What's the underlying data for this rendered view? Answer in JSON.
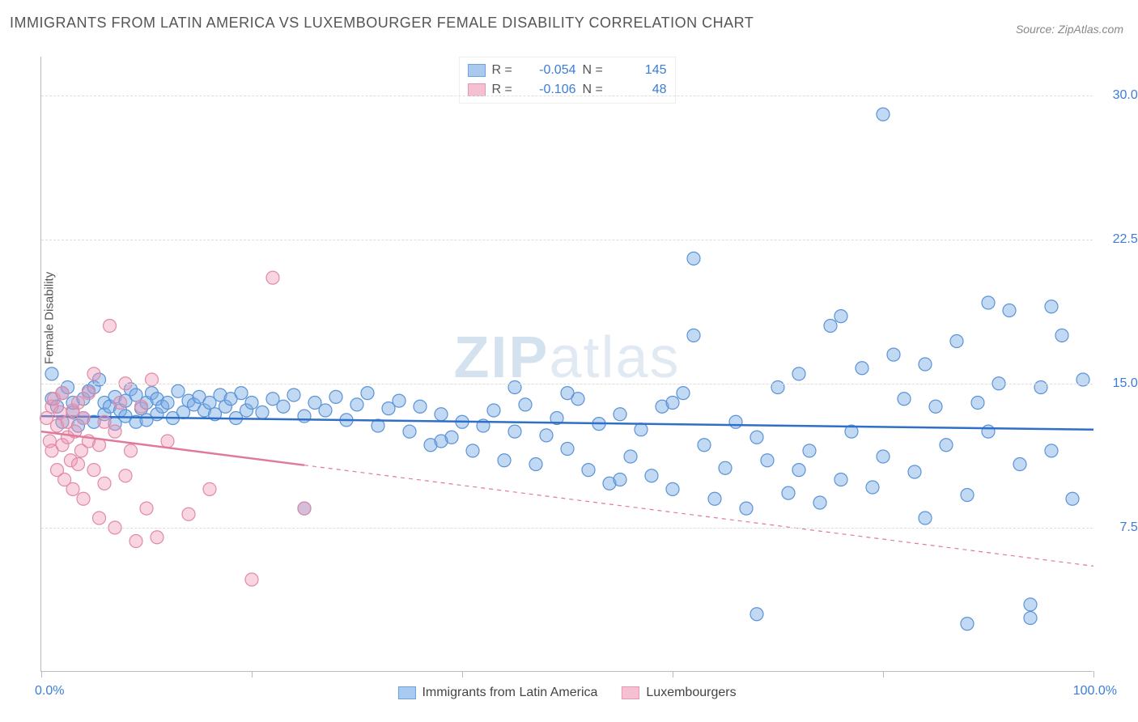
{
  "title": "IMMIGRANTS FROM LATIN AMERICA VS LUXEMBOURGER FEMALE DISABILITY CORRELATION CHART",
  "source": "Source: ZipAtlas.com",
  "watermark": {
    "bold": "ZIP",
    "light": "atlas"
  },
  "chart": {
    "type": "scatter",
    "ylabel": "Female Disability",
    "xlim": [
      0,
      100
    ],
    "ylim": [
      0,
      32
    ],
    "ytick_values": [
      7.5,
      15.0,
      22.5,
      30.0
    ],
    "ytick_labels": [
      "7.5%",
      "15.0%",
      "22.5%",
      "30.0%"
    ],
    "xtick_values": [
      0,
      20,
      40,
      60,
      80,
      100
    ],
    "xtick_left_label": "0.0%",
    "xtick_right_label": "100.0%",
    "background_color": "#ffffff",
    "grid_color": "#dddddd",
    "axis_color": "#bbbbbb",
    "tick_label_color": "#3b7dd8",
    "marker_radius": 8,
    "marker_stroke_width": 1.2,
    "trend_line_width": 2.5,
    "series": [
      {
        "name": "Immigrants from Latin America",
        "fill": "rgba(120,170,230,0.45)",
        "stroke": "#5b93d6",
        "swatch_fill": "#a9c9ef",
        "swatch_stroke": "#6fa3dc",
        "R": "-0.054",
        "N": "145",
        "trend": {
          "x1": 0,
          "y1": 13.3,
          "x2": 100,
          "y2": 12.6,
          "solid_to_x": 100,
          "color": "#2f6fc7"
        },
        "points": [
          [
            1,
            15.5
          ],
          [
            1,
            14.2
          ],
          [
            1.5,
            13.8
          ],
          [
            2,
            14.5
          ],
          [
            2,
            13.0
          ],
          [
            2.5,
            14.8
          ],
          [
            3,
            13.5
          ],
          [
            3,
            14.0
          ],
          [
            3.5,
            12.8
          ],
          [
            4,
            14.2
          ],
          [
            4,
            13.2
          ],
          [
            4.5,
            14.6
          ],
          [
            5,
            13.0
          ],
          [
            5,
            14.8
          ],
          [
            5.5,
            15.2
          ],
          [
            6,
            13.4
          ],
          [
            6,
            14.0
          ],
          [
            6.5,
            13.8
          ],
          [
            7,
            14.3
          ],
          [
            7,
            12.9
          ],
          [
            7.5,
            13.6
          ],
          [
            8,
            14.1
          ],
          [
            8,
            13.3
          ],
          [
            8.5,
            14.7
          ],
          [
            9,
            13.0
          ],
          [
            9,
            14.4
          ],
          [
            9.5,
            13.7
          ],
          [
            10,
            14.0
          ],
          [
            10,
            13.1
          ],
          [
            10.5,
            14.5
          ],
          [
            11,
            13.4
          ],
          [
            11,
            14.2
          ],
          [
            11.5,
            13.8
          ],
          [
            12,
            14.0
          ],
          [
            12.5,
            13.2
          ],
          [
            13,
            14.6
          ],
          [
            13.5,
            13.5
          ],
          [
            14,
            14.1
          ],
          [
            14.5,
            13.9
          ],
          [
            15,
            14.3
          ],
          [
            15.5,
            13.6
          ],
          [
            16,
            14.0
          ],
          [
            16.5,
            13.4
          ],
          [
            17,
            14.4
          ],
          [
            17.5,
            13.8
          ],
          [
            18,
            14.2
          ],
          [
            18.5,
            13.2
          ],
          [
            19,
            14.5
          ],
          [
            19.5,
            13.6
          ],
          [
            20,
            14.0
          ],
          [
            21,
            13.5
          ],
          [
            22,
            14.2
          ],
          [
            23,
            13.8
          ],
          [
            24,
            14.4
          ],
          [
            25,
            13.3
          ],
          [
            26,
            14.0
          ],
          [
            27,
            13.6
          ],
          [
            28,
            14.3
          ],
          [
            29,
            13.1
          ],
          [
            30,
            13.9
          ],
          [
            31,
            14.5
          ],
          [
            32,
            12.8
          ],
          [
            33,
            13.7
          ],
          [
            34,
            14.1
          ],
          [
            35,
            12.5
          ],
          [
            36,
            13.8
          ],
          [
            37,
            11.8
          ],
          [
            38,
            13.4
          ],
          [
            39,
            12.2
          ],
          [
            40,
            13.0
          ],
          [
            41,
            11.5
          ],
          [
            42,
            12.8
          ],
          [
            43,
            13.6
          ],
          [
            44,
            11.0
          ],
          [
            45,
            12.5
          ],
          [
            46,
            13.9
          ],
          [
            47,
            10.8
          ],
          [
            48,
            12.3
          ],
          [
            49,
            13.2
          ],
          [
            50,
            11.6
          ],
          [
            51,
            14.2
          ],
          [
            52,
            10.5
          ],
          [
            53,
            12.9
          ],
          [
            54,
            9.8
          ],
          [
            55,
            13.4
          ],
          [
            56,
            11.2
          ],
          [
            57,
            12.6
          ],
          [
            58,
            10.2
          ],
          [
            59,
            13.8
          ],
          [
            60,
            9.5
          ],
          [
            61,
            14.5
          ],
          [
            62,
            17.5
          ],
          [
            62,
            21.5
          ],
          [
            63,
            11.8
          ],
          [
            64,
            9.0
          ],
          [
            65,
            10.6
          ],
          [
            66,
            13.0
          ],
          [
            67,
            8.5
          ],
          [
            68,
            12.2
          ],
          [
            69,
            11.0
          ],
          [
            70,
            14.8
          ],
          [
            71,
            9.3
          ],
          [
            72,
            15.5
          ],
          [
            73,
            11.5
          ],
          [
            74,
            8.8
          ],
          [
            75,
            18.0
          ],
          [
            76,
            10.0
          ],
          [
            77,
            12.5
          ],
          [
            78,
            15.8
          ],
          [
            79,
            9.6
          ],
          [
            80,
            11.2
          ],
          [
            81,
            16.5
          ],
          [
            82,
            14.2
          ],
          [
            83,
            10.4
          ],
          [
            84,
            8.0
          ],
          [
            85,
            13.8
          ],
          [
            86,
            11.8
          ],
          [
            87,
            17.2
          ],
          [
            88,
            9.2
          ],
          [
            89,
            14.0
          ],
          [
            90,
            12.5
          ],
          [
            91,
            15.0
          ],
          [
            92,
            18.8
          ],
          [
            93,
            10.8
          ],
          [
            94,
            3.5
          ],
          [
            95,
            14.8
          ],
          [
            96,
            11.5
          ],
          [
            97,
            17.5
          ],
          [
            98,
            9.0
          ],
          [
            99,
            15.2
          ],
          [
            80,
            29.0
          ],
          [
            76,
            18.5
          ],
          [
            90,
            19.2
          ],
          [
            96,
            19.0
          ],
          [
            68,
            3.0
          ],
          [
            94,
            2.8
          ],
          [
            45,
            14.8
          ],
          [
            38,
            12.0
          ],
          [
            55,
            10.0
          ],
          [
            72,
            10.5
          ],
          [
            25,
            8.5
          ],
          [
            60,
            14.0
          ],
          [
            84,
            16.0
          ],
          [
            88,
            2.5
          ],
          [
            50,
            14.5
          ]
        ]
      },
      {
        "name": "Luxembourgers",
        "fill": "rgba(240,150,180,0.40)",
        "stroke": "#e08aa8",
        "swatch_fill": "#f5c1d2",
        "swatch_stroke": "#e797b3",
        "R": "-0.106",
        "N": "48",
        "trend": {
          "x1": 0,
          "y1": 12.5,
          "x2": 100,
          "y2": 5.5,
          "solid_to_x": 25,
          "color": "#e07a9a"
        },
        "points": [
          [
            0.5,
            13.2
          ],
          [
            0.8,
            12.0
          ],
          [
            1,
            13.8
          ],
          [
            1,
            11.5
          ],
          [
            1.2,
            14.2
          ],
          [
            1.5,
            12.8
          ],
          [
            1.5,
            10.5
          ],
          [
            1.8,
            13.5
          ],
          [
            2,
            11.8
          ],
          [
            2,
            14.5
          ],
          [
            2.2,
            10.0
          ],
          [
            2.5,
            12.2
          ],
          [
            2.5,
            13.0
          ],
          [
            2.8,
            11.0
          ],
          [
            3,
            13.6
          ],
          [
            3,
            9.5
          ],
          [
            3.2,
            12.5
          ],
          [
            3.5,
            14.0
          ],
          [
            3.5,
            10.8
          ],
          [
            3.8,
            11.5
          ],
          [
            4,
            13.2
          ],
          [
            4,
            9.0
          ],
          [
            4.5,
            12.0
          ],
          [
            4.5,
            14.5
          ],
          [
            5,
            10.5
          ],
          [
            5,
            15.5
          ],
          [
            5.5,
            11.8
          ],
          [
            5.5,
            8.0
          ],
          [
            6,
            13.0
          ],
          [
            6,
            9.8
          ],
          [
            6.5,
            18.0
          ],
          [
            7,
            12.5
          ],
          [
            7,
            7.5
          ],
          [
            7.5,
            14.0
          ],
          [
            8,
            10.2
          ],
          [
            8,
            15.0
          ],
          [
            8.5,
            11.5
          ],
          [
            9,
            6.8
          ],
          [
            9.5,
            13.8
          ],
          [
            10,
            8.5
          ],
          [
            10.5,
            15.2
          ],
          [
            11,
            7.0
          ],
          [
            12,
            12.0
          ],
          [
            14,
            8.2
          ],
          [
            16,
            9.5
          ],
          [
            20,
            4.8
          ],
          [
            22,
            20.5
          ],
          [
            25,
            8.5
          ]
        ]
      }
    ]
  },
  "bottom_legend": [
    {
      "label": "Immigrants from Latin America",
      "fill": "#a9c9ef",
      "stroke": "#6fa3dc"
    },
    {
      "label": "Luxembourgers",
      "fill": "#f5c1d2",
      "stroke": "#e797b3"
    }
  ]
}
